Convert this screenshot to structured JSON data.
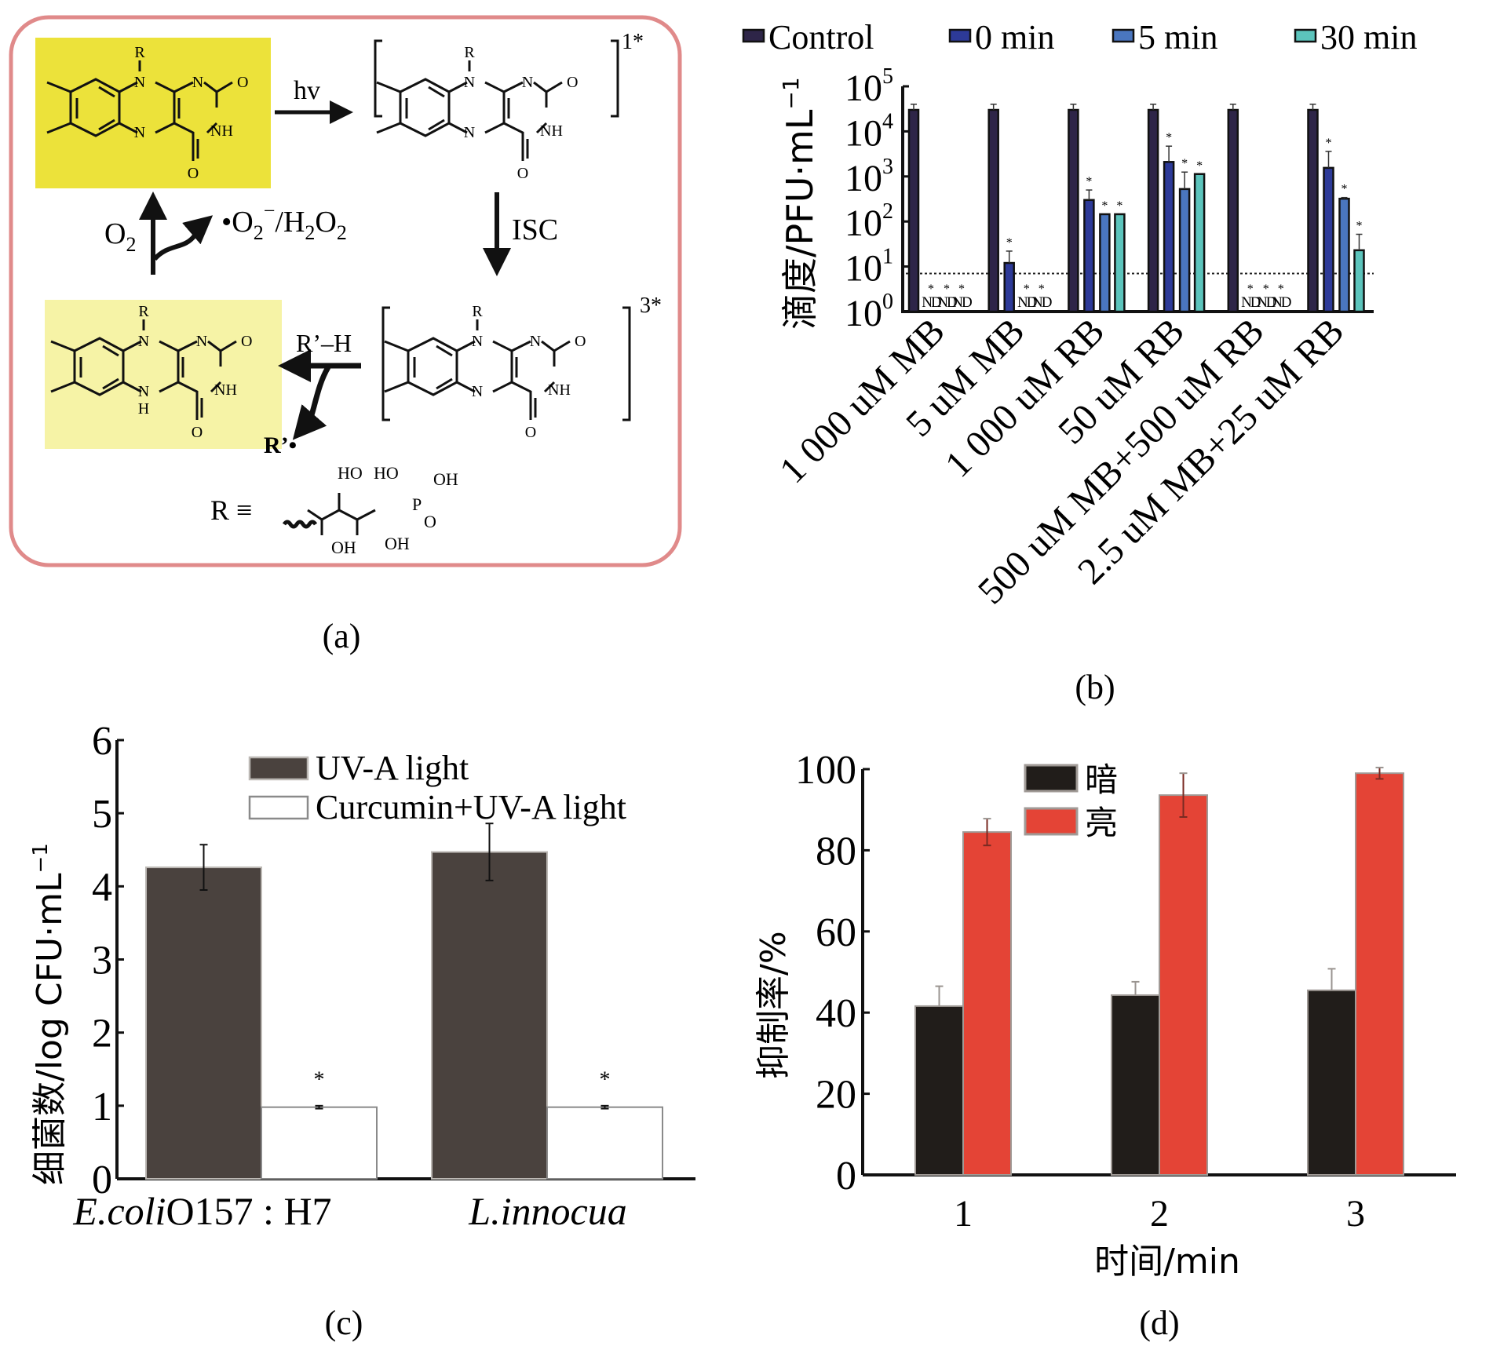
{
  "figure": {
    "panel_labels": {
      "a": "(a)",
      "b": "(b)",
      "c": "(c)",
      "d": "(d)"
    }
  },
  "panel_a": {
    "type": "diagram",
    "border_color": "#e08a8a",
    "highlight_strong": "#ece23a",
    "highlight_light": "#f6f3a6",
    "molecules": {
      "oxidized": {
        "labels": [
          "R",
          "N",
          "N",
          "O",
          "NH",
          "N",
          "O"
        ]
      },
      "singlet": {
        "labels": [
          "R",
          "N",
          "N",
          "O",
          "NH",
          "N",
          "O"
        ],
        "state": "1*"
      },
      "triplet": {
        "labels": [
          "R",
          "N",
          "N",
          "O",
          "NH",
          "N",
          "O"
        ],
        "state": "3*"
      },
      "reduced": {
        "labels": [
          "R",
          "N",
          "N",
          "O",
          "NH",
          "N",
          "H",
          "O"
        ]
      }
    },
    "arrows": {
      "hv": "hv",
      "isc": "ISC",
      "rh": "R’–H",
      "r_radical": "R’•",
      "o2": "O",
      "o2_sub": "2",
      "ros_prefix": "•O",
      "ros_sub1": "2",
      "ros_sup": "−",
      "ros_mid": "/H",
      "ros_sub2": "2",
      "ros_o": "O",
      "ros_sub3": "2"
    },
    "r_definition": {
      "lhs": "R ≡",
      "groups": [
        "HO",
        "HO",
        "OH",
        "P",
        "O",
        "OH",
        "OH"
      ]
    }
  },
  "chart_data": [
    {
      "id": "b",
      "type": "bar",
      "scale": "log",
      "title": "",
      "ylabel": "滴度/PFU·mL",
      "ylabel_sup": "−1",
      "xlabel": "",
      "ylim": [
        1,
        100000
      ],
      "yticks": [
        {
          "base": "10",
          "exp": "0",
          "value": 1
        },
        {
          "base": "10",
          "exp": "1",
          "value": 10
        },
        {
          "base": "10",
          "exp": "2",
          "value": 100
        },
        {
          "base": "10",
          "exp": "3",
          "value": 1000
        },
        {
          "base": "10",
          "exp": "4",
          "value": 10000
        },
        {
          "base": "10",
          "exp": "5",
          "value": 100000
        }
      ],
      "detection_limit": 7,
      "legend_position": "top",
      "categories": [
        "1 000 uM MB",
        "5 uM MB",
        "1 000 uM RB",
        "50 uM RB",
        "500 uM MB+500 uM RB",
        "2.5 uM MB+25 uM RB"
      ],
      "nd_label": "ND",
      "significance_mark": "*",
      "series": [
        {
          "name": "Control",
          "color": "#2e2548",
          "values": [
            30000,
            30000,
            30000,
            30000,
            30000,
            30000
          ],
          "err_high": [
            40000,
            40000,
            40000,
            40000,
            40000,
            40000
          ],
          "nd": [
            false,
            false,
            false,
            false,
            false,
            false
          ],
          "sig": [
            false,
            false,
            false,
            false,
            false,
            false
          ]
        },
        {
          "name": "0 min",
          "color": "#2d3a98",
          "values": [
            null,
            12,
            300,
            2100,
            null,
            1550
          ],
          "err_high": [
            null,
            22,
            500,
            4700,
            null,
            3600
          ],
          "nd": [
            true,
            false,
            false,
            false,
            true,
            false
          ],
          "sig": [
            true,
            true,
            true,
            true,
            true,
            true
          ]
        },
        {
          "name": "5 min",
          "color": "#4a76bf",
          "values": [
            null,
            null,
            145,
            525,
            null,
            320
          ],
          "err_high": [
            null,
            null,
            145,
            1250,
            null,
            340
          ],
          "nd": [
            true,
            true,
            false,
            false,
            true,
            false
          ],
          "sig": [
            true,
            true,
            true,
            true,
            true,
            true
          ]
        },
        {
          "name": "30 min",
          "color": "#5cc4bc",
          "values": [
            null,
            null,
            145,
            1130,
            null,
            23
          ],
          "err_high": [
            null,
            null,
            145,
            1130,
            null,
            52
          ],
          "nd": [
            true,
            true,
            false,
            false,
            true,
            false
          ],
          "sig": [
            true,
            true,
            true,
            true,
            true,
            true
          ]
        }
      ]
    },
    {
      "id": "c",
      "type": "bar",
      "title": "",
      "ylabel": "细菌数/log CFU·mL",
      "ylabel_sup": "−1",
      "xlabel": "",
      "ylim": [
        0,
        6
      ],
      "yticks": [
        0,
        1,
        2,
        3,
        4,
        5,
        6
      ],
      "legend_position": "top-right",
      "categories": [
        {
          "italic": "E.coli",
          "plain": "O157 : H7"
        },
        {
          "italic": "L.innocua",
          "plain": ""
        }
      ],
      "significance_mark": "*",
      "series": [
        {
          "name": "UV-A light",
          "color": "#4a423e",
          "values": [
            4.26,
            4.47
          ],
          "err": [
            0.31,
            0.39
          ],
          "sig": [
            false,
            false
          ]
        },
        {
          "name": "Curcumin+UV-A light",
          "color": "#ffffff",
          "values": [
            0.98,
            0.98
          ],
          "err": [
            0.02,
            0.02
          ],
          "sig": [
            true,
            true
          ]
        }
      ]
    },
    {
      "id": "d",
      "type": "bar",
      "title": "",
      "ylabel": "抑制率/%",
      "xlabel": "时间/min",
      "ylim": [
        0,
        100
      ],
      "yticks": [
        0,
        20,
        40,
        60,
        80,
        100
      ],
      "legend_position": "top-center",
      "categories": [
        "1",
        "2",
        "3"
      ],
      "series": [
        {
          "name": "暗",
          "color": "#211d1a",
          "values": [
            41.6,
            44.3,
            45.5
          ],
          "err": [
            4.9,
            3.3,
            5.3
          ]
        },
        {
          "name": "亮",
          "color": "#e44436",
          "values": [
            84.5,
            93.6,
            99.0
          ],
          "err": [
            3.3,
            5.4,
            1.4
          ]
        }
      ]
    }
  ]
}
